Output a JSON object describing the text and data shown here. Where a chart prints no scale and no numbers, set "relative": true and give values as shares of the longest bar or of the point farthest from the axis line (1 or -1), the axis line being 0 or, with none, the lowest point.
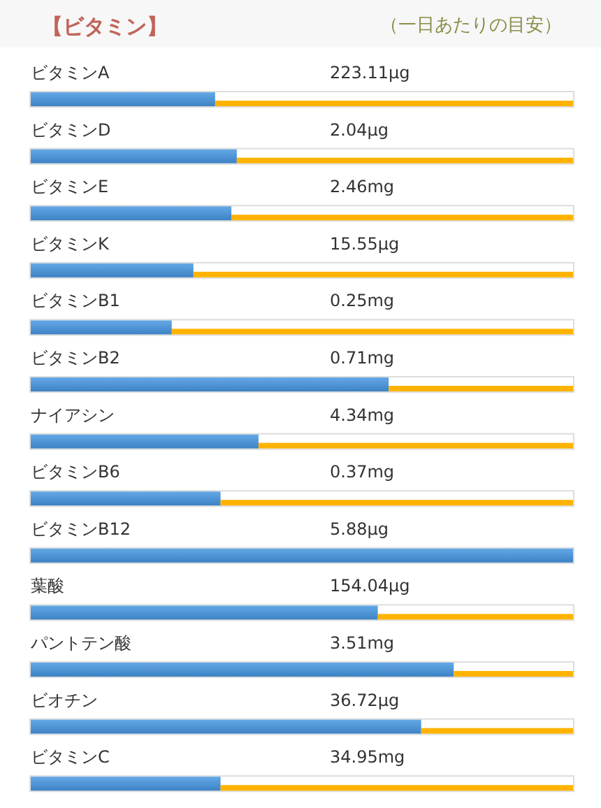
{
  "chart_data": {
    "type": "bar",
    "orientation": "horizontal",
    "stacked": true,
    "relative": true,
    "title": "【ビタミン】",
    "subtitle": "（一日あたりの目安）",
    "categories": [
      "ビタミンA",
      "ビタミンD",
      "ビタミンE",
      "ビタミンK",
      "ビタミンB1",
      "ビタミンB2",
      "ナイアシン",
      "ビタミンB6",
      "ビタミンB12",
      "葉酸",
      "パントテン酸",
      "ビオチン",
      "ビタミンC"
    ],
    "series": [
      {
        "color": "#4a90d6",
        "values": [
          0.34,
          0.38,
          0.37,
          0.3,
          0.26,
          0.66,
          0.42,
          0.35,
          1.0,
          0.64,
          0.78,
          0.72,
          0.35
        ]
      },
      {
        "color": "#ffb300",
        "values": [
          0.66,
          0.62,
          0.63,
          0.7,
          0.74,
          0.34,
          0.58,
          0.65,
          0,
          0.36,
          0.22,
          0.28,
          0.65
        ]
      }
    ],
    "annotations": [
      "223.11μg",
      "2.04μg",
      "2.46mg",
      "15.55μg",
      "0.25mg",
      "0.71mg",
      "4.34mg",
      "0.37mg",
      "5.88μg",
      "154.04μg",
      "3.51mg",
      "36.72μg",
      "34.95mg"
    ]
  }
}
